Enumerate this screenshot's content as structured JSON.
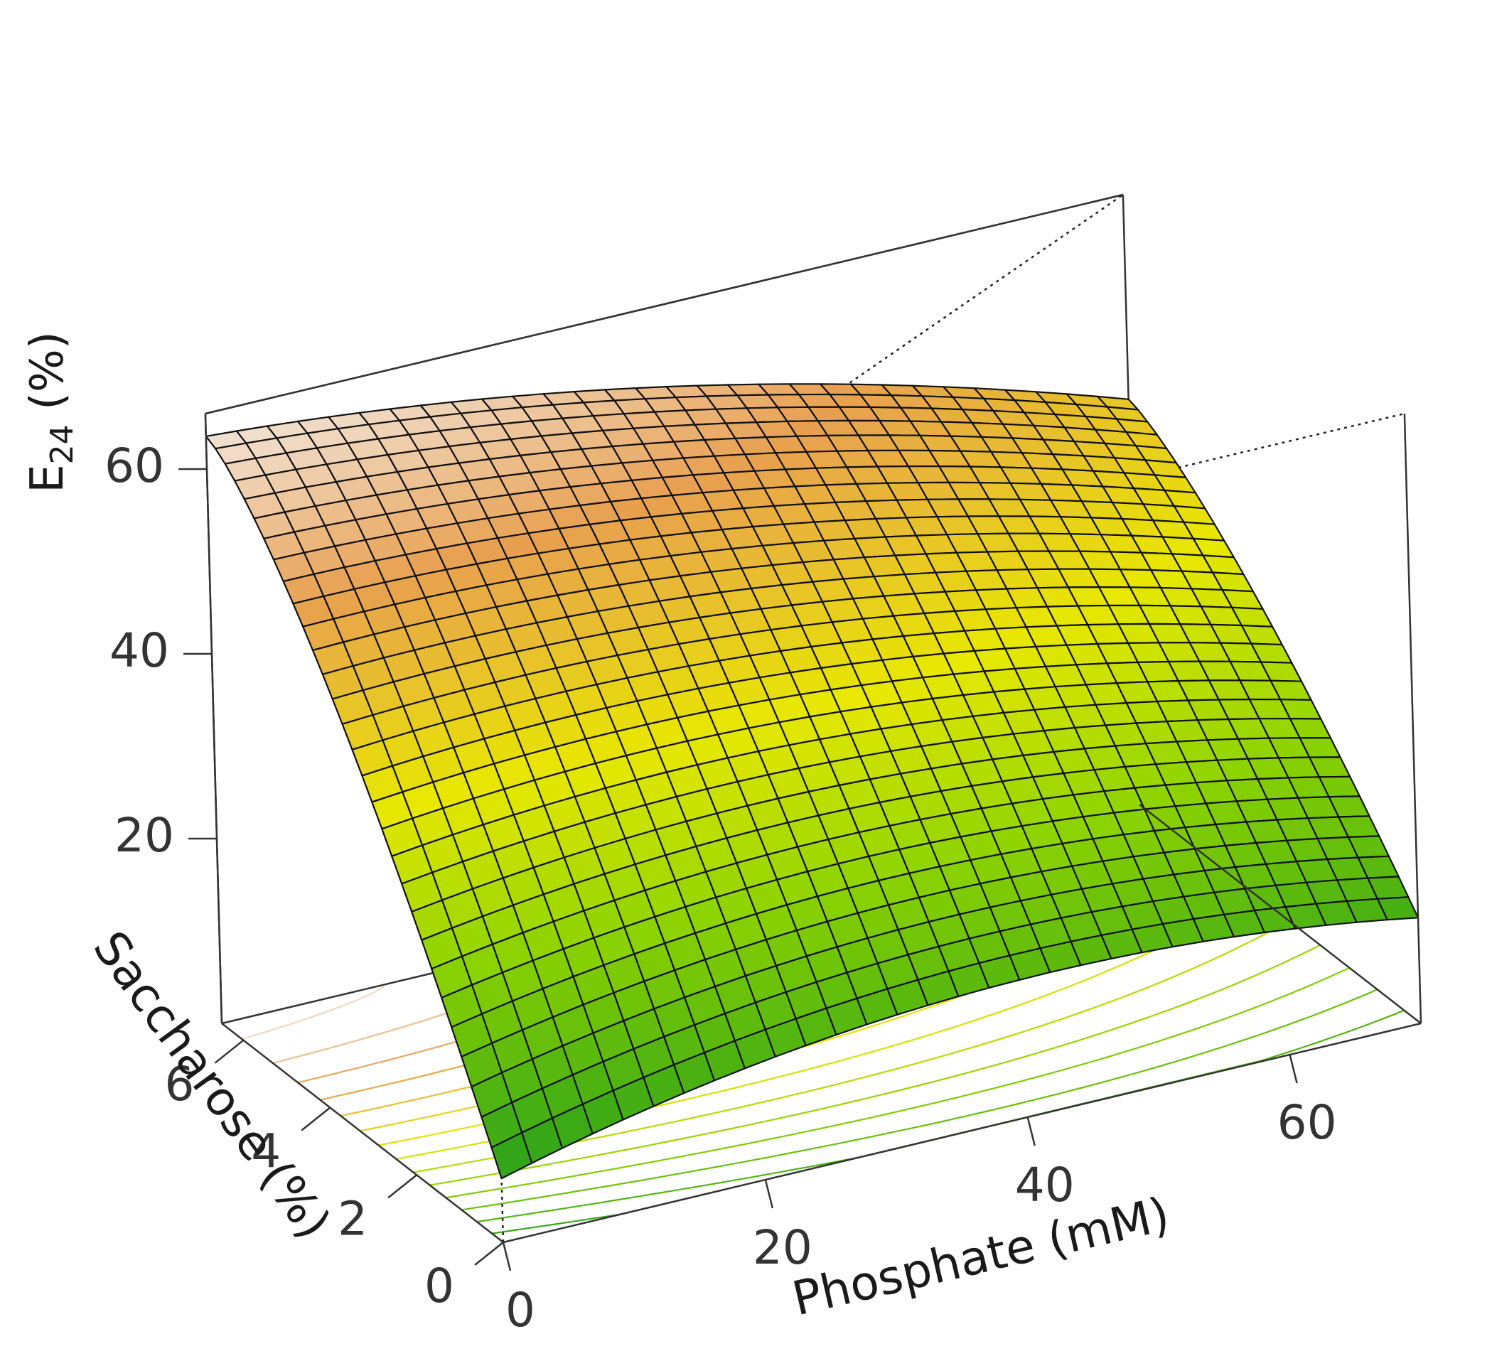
{
  "chart_data": {
    "type": "surface3d",
    "title": "",
    "xlabel": "Phosphate (mM)",
    "ylabel": "Saccharose (%)",
    "zlabel": {
      "main": "E",
      "sub": "24",
      "suffix": " (%)"
    },
    "xlim": [
      0,
      70
    ],
    "ylim": [
      0,
      6.5
    ],
    "zlim": [
      0,
      66
    ],
    "x_ticks": [
      0,
      20,
      40,
      60
    ],
    "y_ticks": [
      0,
      2,
      4,
      6
    ],
    "z_ticks": [
      20,
      40,
      60
    ],
    "grid_divisions": 30,
    "corner_values": {
      "x0_y0": 7,
      "x70_y0": 16,
      "x0_y6.5": 65,
      "x70_y6.5": 48
    },
    "peak_x": 28,
    "contour_floor": true,
    "colors": {
      "low": "#1e9a1e",
      "mid_low": "#8fd400",
      "mid": "#e8e800",
      "mid_high": "#e8a050",
      "high": "#f4f0f0"
    }
  }
}
